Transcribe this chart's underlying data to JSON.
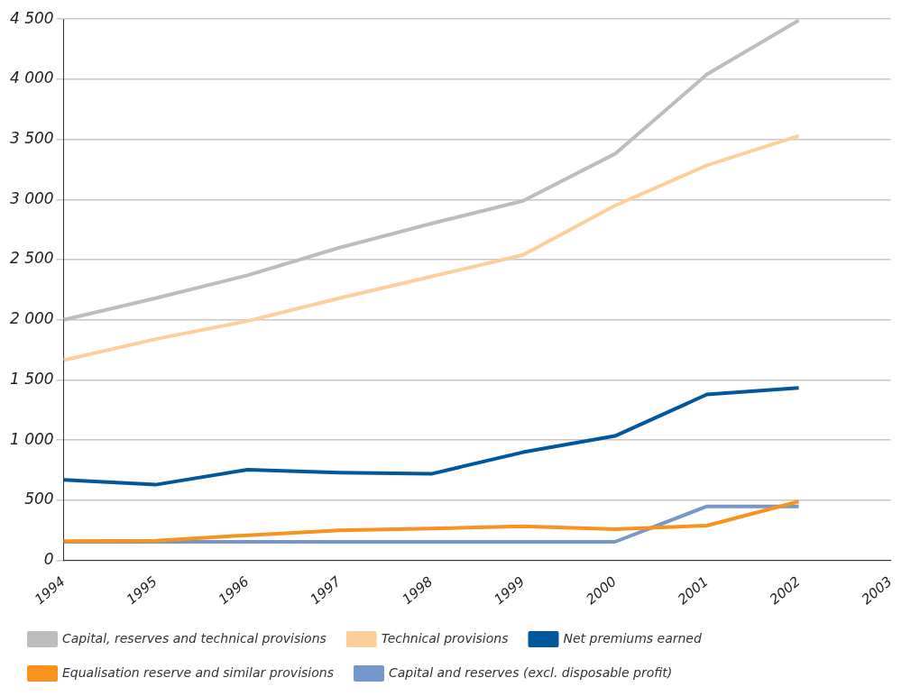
{
  "chart_data": {
    "type": "line",
    "categories": [
      "1994",
      "1995",
      "1996",
      "1997",
      "1998",
      "1999",
      "2000",
      "2001",
      "2002",
      "2003"
    ],
    "series": [
      {
        "name": "Capital, reserves and technical provisions",
        "color": "#bdbdbd",
        "values": [
          2000,
          2180,
          2370,
          2600,
          2800,
          2990,
          3380,
          4040,
          4490,
          null
        ]
      },
      {
        "name": "Technical provisions",
        "color": "#fdd09b",
        "values": [
          1665,
          1840,
          1990,
          2180,
          2360,
          2540,
          2950,
          3285,
          3530,
          null
        ]
      },
      {
        "name": "Net premiums earned",
        "color": "#00579b",
        "values": [
          670,
          630,
          755,
          730,
          720,
          900,
          1035,
          1380,
          1435,
          null
        ]
      },
      {
        "name": "Equalisation reserve and similar provisions",
        "color": "#f7931e",
        "values": [
          160,
          165,
          210,
          250,
          265,
          285,
          260,
          290,
          490,
          null
        ]
      },
      {
        "name": "Capital and reserves (excl. disposable profit)",
        "color": "#7697c9",
        "values": [
          155,
          155,
          155,
          155,
          155,
          155,
          155,
          450,
          450,
          null
        ]
      }
    ],
    "ylim": [
      0,
      4500
    ],
    "yticks": [
      {
        "value": 0,
        "label": "0"
      },
      {
        "value": 500,
        "label": "500"
      },
      {
        "value": 1000,
        "label": "1 000"
      },
      {
        "value": 1500,
        "label": "1 500"
      },
      {
        "value": 2000,
        "label": "2 000"
      },
      {
        "value": 2500,
        "label": "2 500"
      },
      {
        "value": 3000,
        "label": "3 000"
      },
      {
        "value": 3500,
        "label": "3 500"
      },
      {
        "value": 4000,
        "label": "4 000"
      },
      {
        "value": 4500,
        "label": "4 500"
      }
    ],
    "grid": "y",
    "legend": "bottom",
    "marker": "none",
    "line_style": "solid"
  }
}
